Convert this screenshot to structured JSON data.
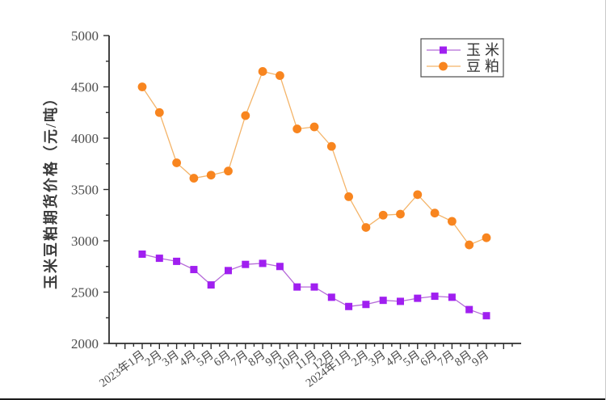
{
  "chart_data": {
    "type": "line",
    "title": "",
    "axes": {
      "ylabel": "玉米豆粕期货价格（元/吨）",
      "xlabel": "",
      "ylim": [
        2000,
        5000
      ],
      "y_major_ticks": [
        2000,
        2500,
        3000,
        3500,
        4000,
        4500,
        5000
      ],
      "y_minor_step": 250,
      "grid": false,
      "legend_position": "top-right"
    },
    "categories": [
      "2023年1月",
      "2月",
      "3月",
      "4月",
      "5月",
      "6月",
      "7月",
      "8月",
      "9月",
      "10月",
      "11月",
      "12月",
      "2024年1月",
      "2月",
      "3月",
      "4月",
      "5月",
      "6月",
      "7月",
      "8月",
      "9月"
    ],
    "series": [
      {
        "name": "玉米",
        "slug": "corn",
        "marker": "square",
        "marker_color": "#a01ff0",
        "line_color": "#b56ad8",
        "values": [
          2870,
          2830,
          2800,
          2720,
          2570,
          2710,
          2770,
          2780,
          2750,
          2550,
          2550,
          2450,
          2360,
          2380,
          2420,
          2410,
          2440,
          2460,
          2450,
          2330,
          2270
        ]
      },
      {
        "name": "豆粕",
        "slug": "soybean-meal",
        "marker": "circle",
        "marker_color": "#f8851f",
        "line_color": "#f4b469",
        "values": [
          4500,
          4250,
          3760,
          3610,
          3640,
          3680,
          4220,
          4650,
          4610,
          4090,
          4110,
          3920,
          3430,
          3130,
          3250,
          3260,
          3450,
          3270,
          3190,
          2960,
          3030
        ]
      }
    ],
    "style_colors": {
      "axis": "#2e2e2e",
      "tick_label": "#4d4d4d",
      "legend_border": "#4d4d4d",
      "legend_background": "#ffffff",
      "frame_bottom": "#1b1b1b",
      "frame_right": "#c9c9c9"
    }
  }
}
